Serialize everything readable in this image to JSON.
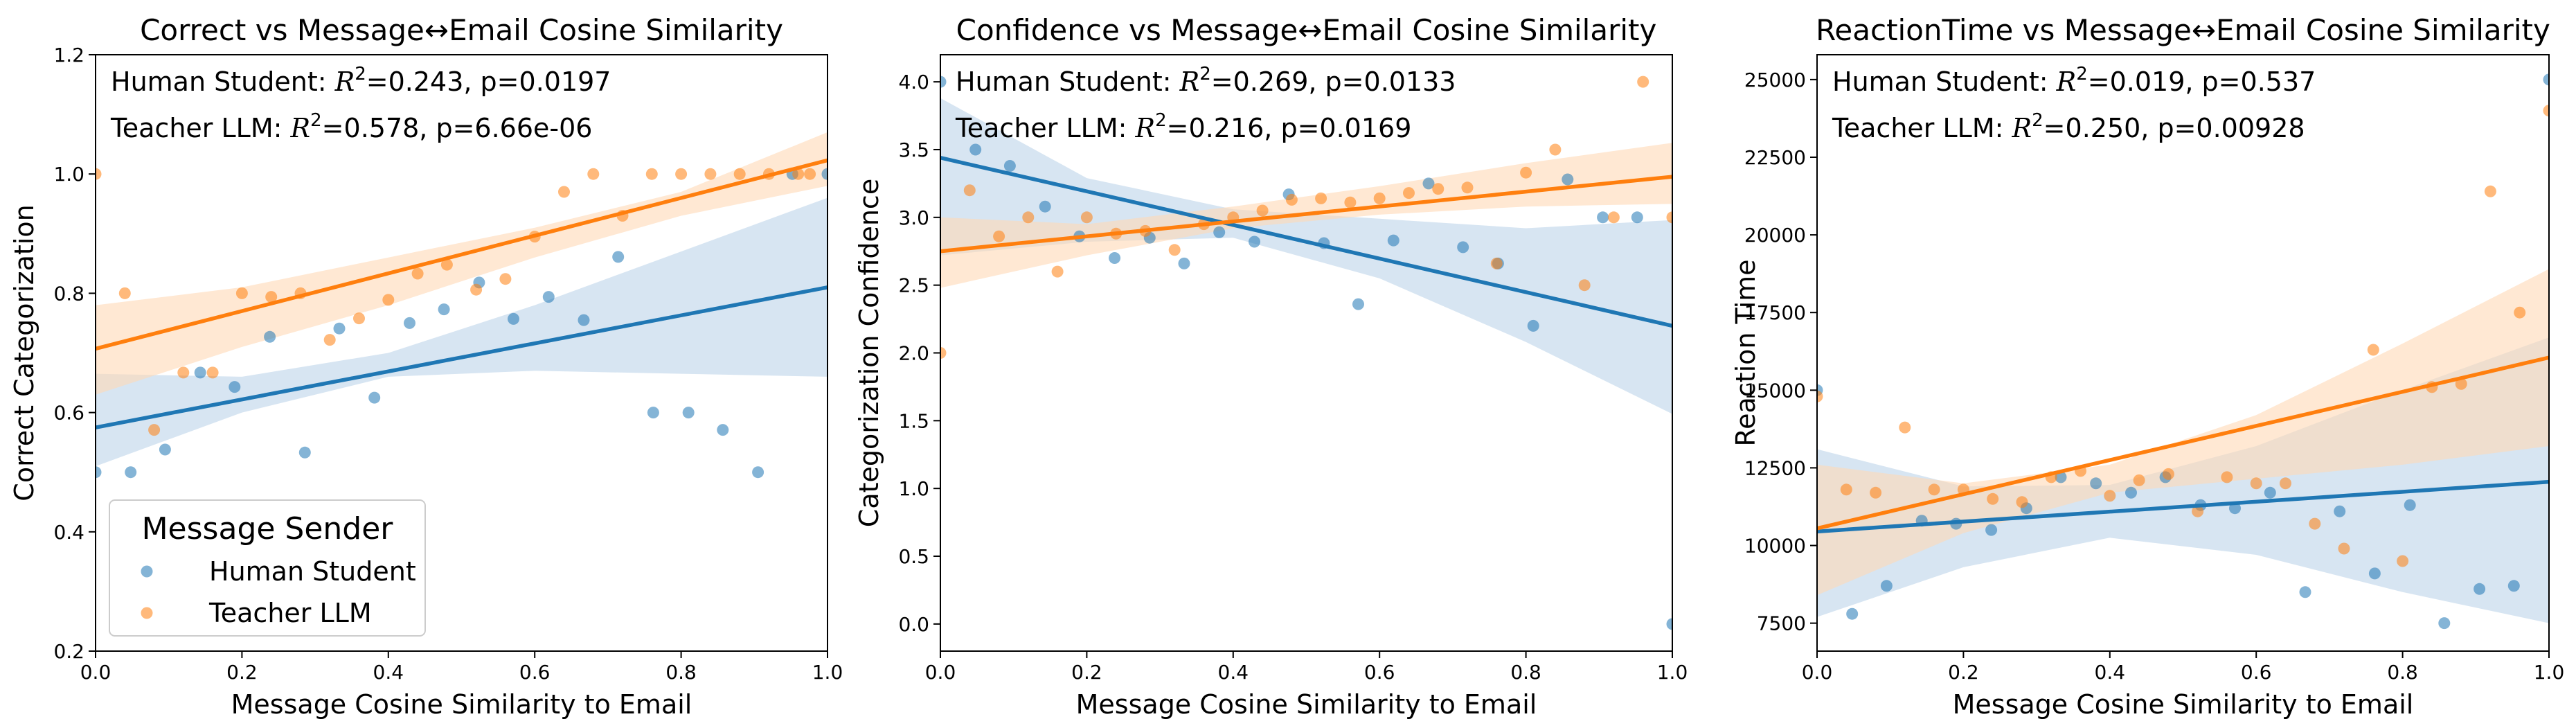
{
  "colors": {
    "human": "#1f77b4",
    "teacher": "#ff7f0e",
    "human_band": "#bcd4ea",
    "teacher_band": "#ffd8b5"
  },
  "chart_data": [
    {
      "type": "scatter",
      "title": "Correct vs Message↔Email Cosine Similarity",
      "xlabel": "Message Cosine Similarity to Email",
      "ylabel": "Correct Categorization",
      "xlim": [
        0,
        1
      ],
      "ylim": [
        0.2,
        1.2
      ],
      "xticks": [
        "0.0",
        "0.2",
        "0.4",
        "0.6",
        "0.8",
        "1.0"
      ],
      "yticks": [
        "0.2",
        "0.4",
        "0.6",
        "0.8",
        "1.0",
        "1.2"
      ],
      "ytick_values": [
        0.2,
        0.4,
        0.6,
        0.8,
        1.0,
        1.2
      ],
      "annotations": [
        {
          "prefix": "Human Student: ",
          "r2": "=0.243, p=0.0197"
        },
        {
          "prefix": "Teacher LLM: ",
          "r2": "=0.578, p=6.66e-06"
        }
      ],
      "legend": {
        "title": "Message Sender",
        "entries": [
          "Human Student",
          "Teacher LLM"
        ],
        "placement": "lower-left"
      },
      "series": [
        {
          "name": "Human Student",
          "points": [
            [
              0.0,
              0.5
            ],
            [
              0.048,
              0.5
            ],
            [
              0.095,
              0.538
            ],
            [
              0.143,
              0.667
            ],
            [
              0.19,
              0.643
            ],
            [
              0.238,
              0.727
            ],
            [
              0.286,
              0.533
            ],
            [
              0.333,
              0.741
            ],
            [
              0.381,
              0.625
            ],
            [
              0.429,
              0.75
            ],
            [
              0.476,
              0.773
            ],
            [
              0.524,
              0.818
            ],
            [
              0.571,
              0.757
            ],
            [
              0.619,
              0.794
            ],
            [
              0.667,
              0.755
            ],
            [
              0.714,
              0.861
            ],
            [
              0.762,
              0.6
            ],
            [
              0.81,
              0.6
            ],
            [
              0.857,
              0.571
            ],
            [
              0.905,
              0.5
            ],
            [
              0.952,
              1.0
            ],
            [
              1.0,
              1.0
            ]
          ],
          "fit": {
            "x": [
              0,
              1
            ],
            "y": [
              0.575,
              0.81
            ]
          },
          "band": {
            "x": [
              0,
              0.2,
              0.4,
              0.6,
              0.8,
              1.0
            ],
            "lower": [
              0.51,
              0.6,
              0.66,
              0.67,
              0.665,
              0.66
            ],
            "upper": [
              0.665,
              0.66,
              0.7,
              0.78,
              0.87,
              0.96
            ]
          }
        },
        {
          "name": "Teacher LLM",
          "points": [
            [
              0.0,
              1.0
            ],
            [
              0.04,
              0.8
            ],
            [
              0.08,
              0.571
            ],
            [
              0.12,
              0.667
            ],
            [
              0.16,
              0.667
            ],
            [
              0.2,
              0.8
            ],
            [
              0.24,
              0.794
            ],
            [
              0.28,
              0.8
            ],
            [
              0.32,
              0.722
            ],
            [
              0.36,
              0.758
            ],
            [
              0.4,
              0.789
            ],
            [
              0.44,
              0.833
            ],
            [
              0.48,
              0.848
            ],
            [
              0.52,
              0.806
            ],
            [
              0.56,
              0.824
            ],
            [
              0.6,
              0.895
            ],
            [
              0.64,
              0.97
            ],
            [
              0.68,
              1.0
            ],
            [
              0.72,
              0.93
            ],
            [
              0.76,
              1.0
            ],
            [
              0.8,
              1.0
            ],
            [
              0.84,
              1.0
            ],
            [
              0.88,
              1.0
            ],
            [
              0.92,
              1.0
            ],
            [
              0.96,
              1.0
            ],
            [
              0.976,
              1.0
            ]
          ],
          "fit": {
            "x": [
              0,
              1
            ],
            "y": [
              0.707,
              1.023
            ]
          },
          "band": {
            "x": [
              0,
              0.2,
              0.4,
              0.6,
              0.8,
              1.0
            ],
            "lower": [
              0.63,
              0.71,
              0.78,
              0.86,
              0.93,
              0.98
            ],
            "upper": [
              0.78,
              0.81,
              0.86,
              0.91,
              0.97,
              1.07
            ]
          }
        }
      ]
    },
    {
      "type": "scatter",
      "title": "Confidence vs Message↔Email Cosine Similarity",
      "xlabel": "Message Cosine Similarity to Email",
      "ylabel": "Categorization Confidence",
      "xlim": [
        0,
        1
      ],
      "ylim": [
        -0.2,
        4.2
      ],
      "xticks": [
        "0.0",
        "0.2",
        "0.4",
        "0.6",
        "0.8",
        "1.0"
      ],
      "yticks": [
        "0.0",
        "0.5",
        "1.0",
        "1.5",
        "2.0",
        "2.5",
        "3.0",
        "3.5",
        "4.0"
      ],
      "ytick_values": [
        0,
        0.5,
        1.0,
        1.5,
        2.0,
        2.5,
        3.0,
        3.5,
        4.0
      ],
      "annotations": [
        {
          "prefix": "Human Student: ",
          "r2": "=0.269, p=0.0133"
        },
        {
          "prefix": "Teacher LLM: ",
          "r2": "=0.216, p=0.0169"
        }
      ],
      "series": [
        {
          "name": "Human Student",
          "points": [
            [
              0.0,
              4.0
            ],
            [
              0.048,
              3.5
            ],
            [
              0.095,
              3.38
            ],
            [
              0.143,
              3.08
            ],
            [
              0.19,
              2.86
            ],
            [
              0.238,
              2.7
            ],
            [
              0.286,
              2.85
            ],
            [
              0.333,
              2.66
            ],
            [
              0.381,
              2.89
            ],
            [
              0.429,
              2.82
            ],
            [
              0.476,
              3.17
            ],
            [
              0.524,
              2.81
            ],
            [
              0.571,
              2.36
            ],
            [
              0.619,
              2.83
            ],
            [
              0.667,
              3.25
            ],
            [
              0.714,
              2.78
            ],
            [
              0.762,
              2.66
            ],
            [
              0.81,
              2.2
            ],
            [
              0.857,
              3.28
            ],
            [
              0.905,
              3.0
            ],
            [
              0.952,
              3.0
            ],
            [
              1.0,
              0.0
            ]
          ],
          "fit": {
            "x": [
              0,
              1
            ],
            "y": [
              3.44,
              2.2
            ]
          },
          "band": {
            "x": [
              0,
              0.2,
              0.4,
              0.6,
              0.8,
              1.0
            ],
            "lower": [
              2.72,
              2.82,
              2.85,
              2.55,
              2.08,
              1.55
            ],
            "upper": [
              3.88,
              3.29,
              3.06,
              2.99,
              2.92,
              2.98
            ]
          }
        },
        {
          "name": "Teacher LLM",
          "points": [
            [
              0.0,
              2.0
            ],
            [
              0.04,
              3.2
            ],
            [
              0.08,
              2.86
            ],
            [
              0.12,
              3.0
            ],
            [
              0.16,
              2.6
            ],
            [
              0.2,
              3.0
            ],
            [
              0.24,
              2.88
            ],
            [
              0.28,
              2.9
            ],
            [
              0.32,
              2.76
            ],
            [
              0.36,
              2.95
            ],
            [
              0.4,
              3.0
            ],
            [
              0.44,
              3.05
            ],
            [
              0.48,
              3.13
            ],
            [
              0.52,
              3.14
            ],
            [
              0.56,
              3.11
            ],
            [
              0.6,
              3.14
            ],
            [
              0.64,
              3.18
            ],
            [
              0.68,
              3.21
            ],
            [
              0.72,
              3.22
            ],
            [
              0.76,
              2.66
            ],
            [
              0.8,
              3.33
            ],
            [
              0.84,
              3.5
            ],
            [
              0.88,
              2.5
            ],
            [
              0.92,
              3.0
            ],
            [
              0.96,
              4.0
            ],
            [
              1.0,
              3.0
            ]
          ],
          "fit": {
            "x": [
              0,
              1
            ],
            "y": [
              2.75,
              3.3
            ]
          },
          "band": {
            "x": [
              0,
              0.2,
              0.4,
              0.6,
              0.8,
              1.0
            ],
            "lower": [
              2.48,
              2.72,
              2.92,
              3.02,
              3.08,
              3.1
            ],
            "upper": [
              3.0,
              2.95,
              3.08,
              3.23,
              3.4,
              3.55
            ]
          }
        }
      ]
    },
    {
      "type": "scatter",
      "title": "ReactionTime vs Message↔Email Cosine Similarity",
      "xlabel": "Message Cosine Similarity to Email",
      "ylabel": "Reaction Time",
      "xlim": [
        0,
        1
      ],
      "ylim": [
        6600,
        25800
      ],
      "xticks": [
        "0.0",
        "0.2",
        "0.4",
        "0.6",
        "0.8",
        "1.0"
      ],
      "yticks": [
        "7500",
        "10000",
        "12500",
        "15000",
        "17500",
        "20000",
        "22500",
        "25000"
      ],
      "ytick_values": [
        7500,
        10000,
        12500,
        15000,
        17500,
        20000,
        22500,
        25000
      ],
      "annotations": [
        {
          "prefix": "Human Student: ",
          "r2": "=0.019, p=0.537"
        },
        {
          "prefix": "Teacher LLM: ",
          "r2": "=0.250, p=0.00928"
        }
      ],
      "series": [
        {
          "name": "Human Student",
          "points": [
            [
              0.0,
              15000
            ],
            [
              0.048,
              7800
            ],
            [
              0.095,
              8700
            ],
            [
              0.143,
              10800
            ],
            [
              0.19,
              10700
            ],
            [
              0.238,
              10500
            ],
            [
              0.286,
              11200
            ],
            [
              0.333,
              12200
            ],
            [
              0.381,
              12000
            ],
            [
              0.429,
              11700
            ],
            [
              0.476,
              12200
            ],
            [
              0.524,
              11300
            ],
            [
              0.571,
              11200
            ],
            [
              0.619,
              11700
            ],
            [
              0.667,
              8500
            ],
            [
              0.714,
              11100
            ],
            [
              0.762,
              9100
            ],
            [
              0.81,
              11300
            ],
            [
              0.857,
              7500
            ],
            [
              0.905,
              8600
            ],
            [
              0.952,
              8700
            ],
            [
              1.0,
              25000
            ]
          ],
          "fit": {
            "x": [
              0,
              1
            ],
            "y": [
              10450,
              12050
            ]
          },
          "band": {
            "x": [
              0,
              0.2,
              0.4,
              0.6,
              0.8,
              1.0
            ],
            "lower": [
              7700,
              9300,
              10250,
              9700,
              8500,
              7500
            ],
            "upper": [
              13100,
              11900,
              11950,
              13200,
              15000,
              16700
            ]
          }
        },
        {
          "name": "Teacher LLM",
          "points": [
            [
              0.0,
              14800
            ],
            [
              0.04,
              11800
            ],
            [
              0.08,
              11700
            ],
            [
              0.12,
              13800
            ],
            [
              0.16,
              11800
            ],
            [
              0.2,
              11800
            ],
            [
              0.24,
              11500
            ],
            [
              0.28,
              11400
            ],
            [
              0.32,
              12200
            ],
            [
              0.36,
              12400
            ],
            [
              0.4,
              11600
            ],
            [
              0.44,
              12100
            ],
            [
              0.48,
              12300
            ],
            [
              0.52,
              11100
            ],
            [
              0.56,
              12200
            ],
            [
              0.6,
              12000
            ],
            [
              0.64,
              12000
            ],
            [
              0.68,
              10700
            ],
            [
              0.72,
              9900
            ],
            [
              0.76,
              16300
            ],
            [
              0.8,
              9500
            ],
            [
              0.84,
              15100
            ],
            [
              0.88,
              15200
            ],
            [
              0.92,
              21400
            ],
            [
              0.96,
              17500
            ],
            [
              1.0,
              24000
            ]
          ],
          "fit": {
            "x": [
              0,
              1
            ],
            "y": [
              10550,
              16050
            ]
          },
          "band": {
            "x": [
              0,
              0.2,
              0.4,
              0.6,
              0.8,
              1.0
            ],
            "lower": [
              8400,
              10400,
              11700,
              12150,
              12600,
              13200
            ],
            "upper": [
              12600,
              12000,
              12600,
              14200,
              16500,
              18900
            ]
          }
        }
      ]
    }
  ]
}
